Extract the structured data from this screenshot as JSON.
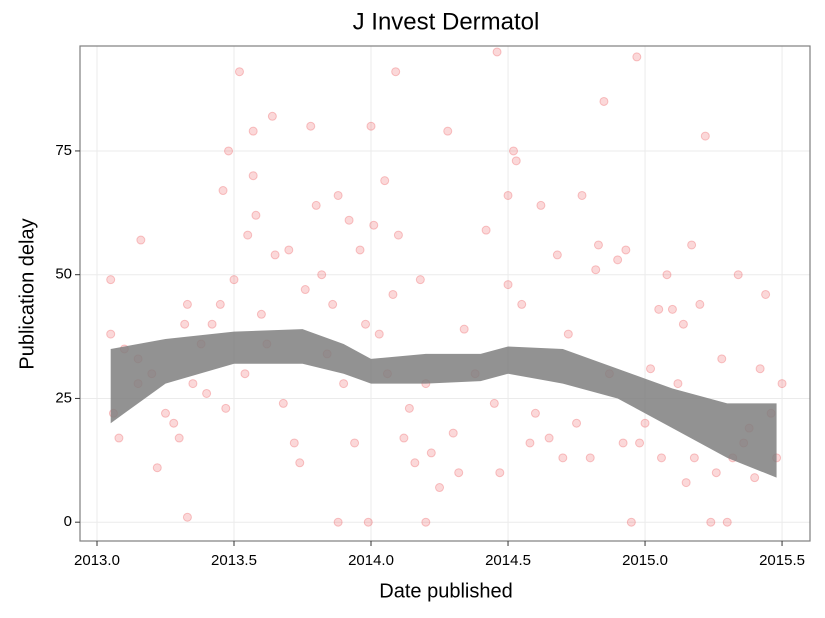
{
  "chart_data": {
    "type": "scatter",
    "title": "J Invest Dermatol",
    "x_label": "Date published",
    "y_label": "Publication delay",
    "xlim": [
      2012.938,
      2015.602
    ],
    "ylim": [
      -3.8,
      96.2
    ],
    "xticks": [
      {
        "value": 2013.0,
        "label": "2013.0"
      },
      {
        "value": 2013.5,
        "label": "2013.5"
      },
      {
        "value": 2014.0,
        "label": "2014.0"
      },
      {
        "value": 2014.5,
        "label": "2014.5"
      },
      {
        "value": 2015.0,
        "label": "2015.0"
      },
      {
        "value": 2015.5,
        "label": "2015.5"
      }
    ],
    "yticks": [
      0,
      25,
      50,
      75
    ],
    "grid": true,
    "points": {
      "color": "#e8272b",
      "x": [
        2013.05,
        2013.05,
        2013.06,
        2013.08,
        2013.1,
        2013.15,
        2013.16,
        2013.15,
        2013.2,
        2013.22,
        2013.25,
        2013.28,
        2013.3,
        2013.32,
        2013.33,
        2013.33,
        2013.35,
        2013.38,
        2013.4,
        2013.42,
        2013.45,
        2013.46,
        2013.47,
        2013.48,
        2013.5,
        2013.52,
        2013.54,
        2013.55,
        2013.57,
        2013.57,
        2013.58,
        2013.6,
        2013.62,
        2013.64,
        2013.65,
        2013.68,
        2013.7,
        2013.72,
        2013.74,
        2013.76,
        2013.78,
        2013.8,
        2013.82,
        2013.84,
        2013.86,
        2013.88,
        2013.88,
        2013.9,
        2013.92,
        2013.94,
        2013.96,
        2013.98,
        2013.99,
        2014.0,
        2014.01,
        2014.03,
        2014.05,
        2014.06,
        2014.08,
        2014.09,
        2014.1,
        2014.12,
        2014.14,
        2014.16,
        2014.18,
        2014.2,
        2014.2,
        2014.22,
        2014.25,
        2014.28,
        2014.3,
        2014.32,
        2014.34,
        2014.38,
        2014.42,
        2014.45,
        2014.46,
        2014.47,
        2014.5,
        2014.5,
        2014.52,
        2014.53,
        2014.55,
        2014.58,
        2014.6,
        2014.62,
        2014.65,
        2014.68,
        2014.7,
        2014.72,
        2014.75,
        2014.77,
        2014.8,
        2014.82,
        2014.83,
        2014.85,
        2014.87,
        2014.9,
        2014.92,
        2014.93,
        2014.95,
        2014.97,
        2014.98,
        2015.0,
        2015.02,
        2015.05,
        2015.06,
        2015.08,
        2015.1,
        2015.12,
        2015.14,
        2015.15,
        2015.17,
        2015.18,
        2015.2,
        2015.22,
        2015.24,
        2015.26,
        2015.28,
        2015.3,
        2015.32,
        2015.34,
        2015.36,
        2015.38,
        2015.4,
        2015.42,
        2015.44,
        2015.46,
        2015.48,
        2015.5
      ],
      "y": [
        49,
        38,
        22,
        17,
        35,
        33,
        57,
        28,
        30,
        11,
        22,
        20,
        17,
        40,
        44,
        1,
        28,
        36,
        26,
        40,
        44,
        67,
        23,
        75,
        49,
        91,
        30,
        58,
        79,
        70,
        62,
        42,
        36,
        82,
        54,
        24,
        55,
        16,
        12,
        47,
        80,
        64,
        50,
        34,
        44,
        66,
        0,
        28,
        61,
        16,
        55,
        40,
        0,
        80,
        60,
        38,
        69,
        30,
        46,
        91,
        58,
        17,
        23,
        12,
        49,
        28,
        0,
        14,
        7,
        79,
        18,
        10,
        39,
        30,
        59,
        24,
        95,
        10,
        66,
        48,
        75,
        73,
        44,
        16,
        22,
        64,
        17,
        54,
        13,
        38,
        20,
        66,
        13,
        51,
        56,
        85,
        30,
        53,
        16,
        55,
        0,
        94,
        16,
        20,
        31,
        43,
        13,
        50,
        43,
        28,
        40,
        8,
        56,
        13,
        44,
        78,
        0,
        10,
        33,
        0,
        13,
        50,
        16,
        19,
        9,
        31,
        46,
        22,
        13,
        28
      ]
    },
    "band": {
      "color": "#7f7f7f",
      "x": [
        2013.05,
        2013.25,
        2013.5,
        2013.75,
        2013.9,
        2014.0,
        2014.2,
        2014.4,
        2014.5,
        2014.7,
        2014.9,
        2015.1,
        2015.3,
        2015.48
      ],
      "lower": [
        20,
        28,
        32,
        32,
        30,
        28,
        28,
        28.5,
        30,
        28,
        25,
        19,
        13,
        9
      ],
      "upper": [
        35,
        37,
        38.5,
        39,
        36,
        33,
        34,
        34,
        35.5,
        35,
        31,
        27,
        24,
        24
      ]
    }
  }
}
